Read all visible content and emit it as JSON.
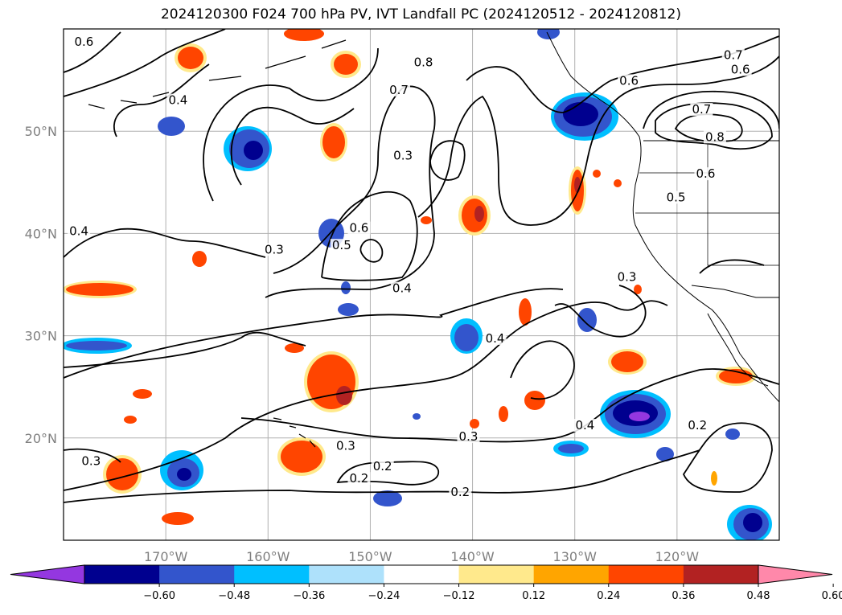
{
  "title": "2024120300 F024 700 hPa PV, IVT Landfall PC (2024120512 - 2024120812)",
  "map": {
    "lon_range": [
      -180,
      -110
    ],
    "lat_range": [
      10,
      60
    ],
    "lat_ticks": [
      {
        "value": 50,
        "label": "50°N"
      },
      {
        "value": 40,
        "label": "40°N"
      },
      {
        "value": 30,
        "label": "30°N"
      },
      {
        "value": 20,
        "label": "20°N"
      }
    ],
    "lon_ticks": [
      {
        "value": -170,
        "label": "170°W"
      },
      {
        "value": -160,
        "label": "160°W"
      },
      {
        "value": -150,
        "label": "150°W"
      },
      {
        "value": -140,
        "label": "140°W"
      },
      {
        "value": -130,
        "label": "130°W"
      },
      {
        "value": -120,
        "label": "120°W"
      }
    ],
    "grid": true,
    "contour_labels": [
      {
        "text": "0.6",
        "lon": -178,
        "lat": 58.5
      },
      {
        "text": "0.8",
        "lon": -144.8,
        "lat": 56.5
      },
      {
        "text": "0.7",
        "lon": -147.2,
        "lat": 53.8
      },
      {
        "text": "0.6",
        "lon": -124.7,
        "lat": 54.7
      },
      {
        "text": "0.7",
        "lon": -117.6,
        "lat": 51.9
      },
      {
        "text": "0.8",
        "lon": -116.3,
        "lat": 49.2
      },
      {
        "text": "0.6",
        "lon": -117.2,
        "lat": 45.6
      },
      {
        "text": "0.5",
        "lon": -120.1,
        "lat": 43.3
      },
      {
        "text": "0.7",
        "lon": -114.5,
        "lat": 57.2
      },
      {
        "text": "0.6",
        "lon": -113.8,
        "lat": 55.8
      },
      {
        "text": "0.4",
        "lon": -168.8,
        "lat": 52.8
      },
      {
        "text": "0.3",
        "lon": -146.8,
        "lat": 47.4
      },
      {
        "text": "0.6",
        "lon": -151.1,
        "lat": 40.3
      },
      {
        "text": "0.5",
        "lon": -152.8,
        "lat": 38.6
      },
      {
        "text": "0.3",
        "lon": -159.4,
        "lat": 38.2
      },
      {
        "text": "0.4",
        "lon": -178.5,
        "lat": 40.0
      },
      {
        "text": "0.4",
        "lon": -146.9,
        "lat": 34.4
      },
      {
        "text": "0.3",
        "lon": -124.9,
        "lat": 35.5
      },
      {
        "text": "0.4",
        "lon": -137.8,
        "lat": 29.5
      },
      {
        "text": "0.4",
        "lon": -129.0,
        "lat": 21.0
      },
      {
        "text": "0.3",
        "lon": -140.4,
        "lat": 19.9
      },
      {
        "text": "0.2",
        "lon": -118.0,
        "lat": 21.0
      },
      {
        "text": "0.3",
        "lon": -152.4,
        "lat": 19.0
      },
      {
        "text": "0.3",
        "lon": -177.3,
        "lat": 17.5
      },
      {
        "text": "0.2",
        "lon": -148.8,
        "lat": 17.0
      },
      {
        "text": "0.2",
        "lon": -151.1,
        "lat": 15.8
      },
      {
        "text": "0.2",
        "lon": -141.2,
        "lat": 14.5
      }
    ]
  },
  "colorbar": {
    "colors": [
      "#9437e0",
      "#00008f",
      "#3355cc",
      "#00bfff",
      "#aee1fb",
      "#ffffff",
      "#ffe98c",
      "#ffa500",
      "#ff4500",
      "#b22222",
      "#ff88aa"
    ],
    "ticks": [
      "−0.60",
      "−0.48",
      "−0.36",
      "−0.24",
      "−0.12",
      "0.12",
      "0.24",
      "0.36",
      "0.48",
      "0.60"
    ],
    "extend": "both"
  }
}
